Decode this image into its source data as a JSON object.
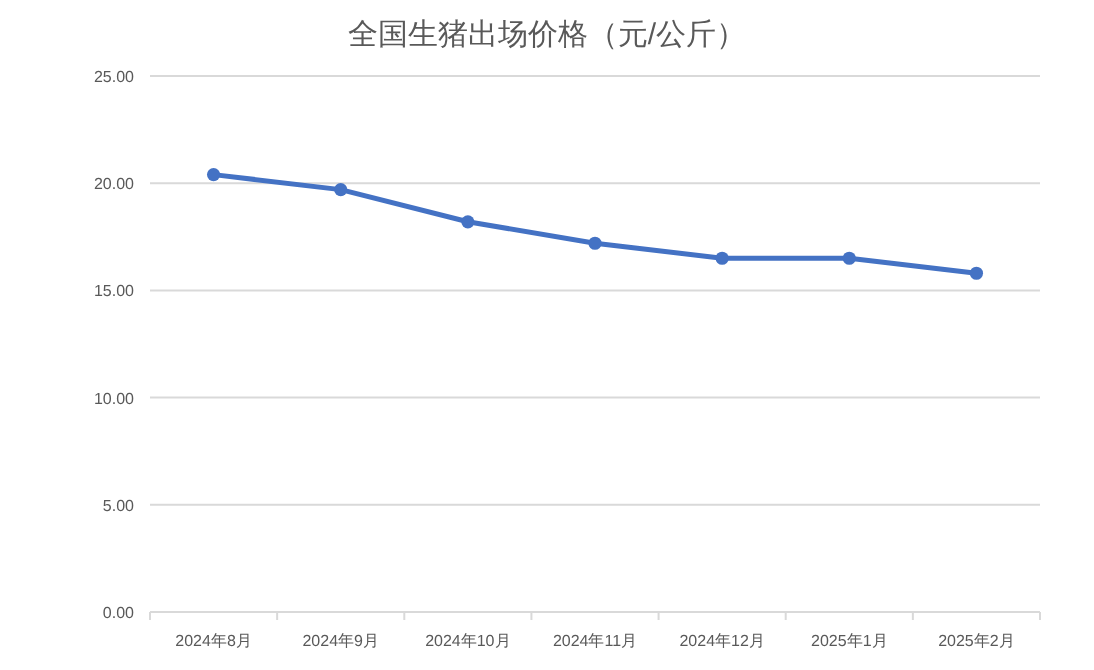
{
  "chart_data": {
    "type": "line",
    "title": "全国生猪出场价格（元/公斤）",
    "categories": [
      "2024年8月",
      "2024年9月",
      "2024年10月",
      "2024年11月",
      "2024年12月",
      "2025年1月",
      "2025年2月"
    ],
    "series": [
      {
        "color": "#4472c4",
        "values": [
          20.4,
          19.7,
          18.2,
          17.2,
          16.5,
          16.5,
          15.8
        ]
      }
    ],
    "ylim": [
      0,
      25
    ],
    "yticks": [
      {
        "value": 0,
        "label": "0.00"
      },
      {
        "value": 5,
        "label": "5.00"
      },
      {
        "value": 10,
        "label": "10.00"
      },
      {
        "value": 15,
        "label": "15.00"
      },
      {
        "value": 20,
        "label": "20.00"
      },
      {
        "value": 25,
        "label": "25.00"
      }
    ],
    "grid": "y",
    "marker": "circle",
    "line_style": "solid"
  }
}
